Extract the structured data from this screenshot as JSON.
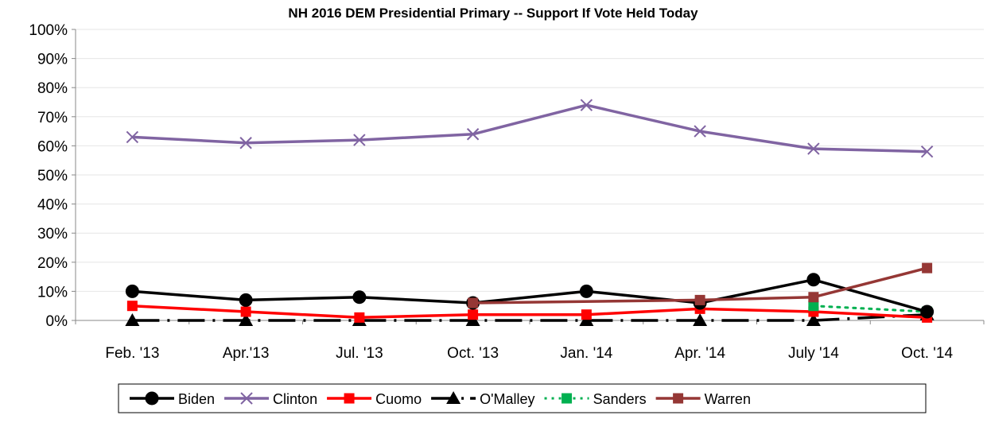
{
  "chart_data": {
    "type": "line",
    "title": "NH 2016 DEM Presidential Primary -- Support If Vote Held Today",
    "xlabel": "",
    "ylabel": "",
    "ylim": [
      0,
      100
    ],
    "y_ticks": [
      "0%",
      "10%",
      "20%",
      "30%",
      "40%",
      "50%",
      "60%",
      "70%",
      "80%",
      "90%",
      "100%"
    ],
    "categories": [
      "Feb. '13",
      "Apr.'13",
      "Jul. '13",
      "Oct. '13",
      "Jan. '14",
      "Apr. '14",
      "July '14",
      "Oct. '14"
    ],
    "grid": true,
    "legend_position": "bottom",
    "series": [
      {
        "name": "Biden",
        "color": "#000000",
        "marker": "circle",
        "dash": "solid",
        "values": [
          10,
          7,
          8,
          6,
          10,
          6,
          14,
          3
        ]
      },
      {
        "name": "Clinton",
        "color": "#8064A2",
        "marker": "x",
        "dash": "solid",
        "values": [
          63,
          61,
          62,
          64,
          74,
          65,
          59,
          58
        ]
      },
      {
        "name": "Cuomo",
        "color": "#FF0000",
        "marker": "square",
        "dash": "solid",
        "values": [
          5,
          3,
          1,
          2,
          2,
          4,
          3,
          1
        ]
      },
      {
        "name": "O'Malley",
        "color": "#000000",
        "marker": "triangle",
        "dash": "longdashdot",
        "values": [
          0,
          0,
          0,
          0,
          0,
          0,
          0,
          2
        ]
      },
      {
        "name": "Sanders",
        "color": "#00B050",
        "marker": "square",
        "dash": "dot",
        "values": [
          null,
          null,
          null,
          null,
          null,
          null,
          5,
          3
        ]
      },
      {
        "name": "Warren",
        "color": "#953735",
        "marker": "square",
        "dash": "solid",
        "values": [
          null,
          null,
          null,
          6,
          null,
          7,
          8,
          18
        ]
      }
    ]
  }
}
